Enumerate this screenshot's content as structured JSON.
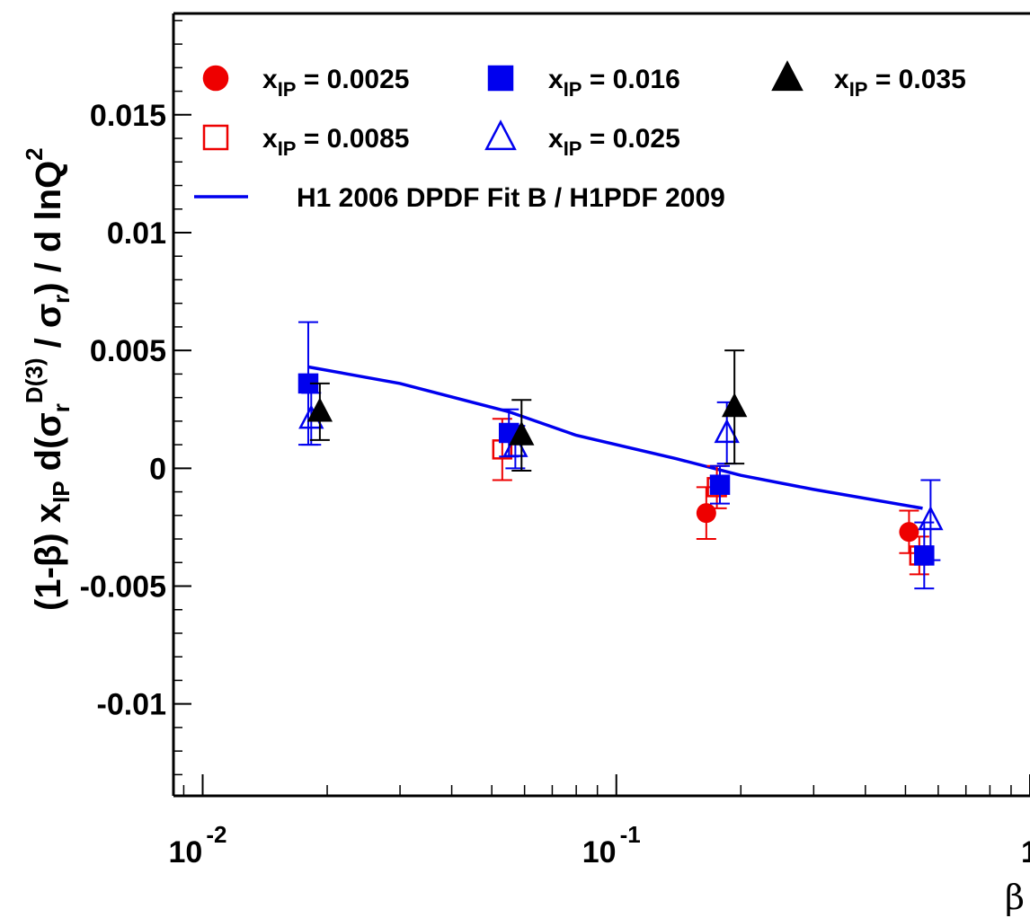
{
  "chart_data": {
    "type": "scatter",
    "title": "",
    "xlabel": "β",
    "ylabel_parts": {
      "prefix": "(1-β)  x",
      "prefix_sub": "IP",
      "mid": " d(σ",
      "mid_sub": "r",
      "mid_sup": "D(3)",
      "tail1": " / σ",
      "tail1_sub": "r",
      "tail2": ") / d lnQ",
      "tail2_sup": "2"
    },
    "x_scale": "log",
    "xlim": [
      0.0085,
      1.0
    ],
    "ylim": [
      -0.0139,
      0.0193
    ],
    "x_ticks": [
      {
        "value": 0.01,
        "base": "10",
        "exp": "-2"
      },
      {
        "value": 0.1,
        "base": "10",
        "exp": "-1"
      },
      {
        "value": 1.0,
        "base": "1",
        "exp": ""
      }
    ],
    "y_ticks": [
      {
        "value": 0.015,
        "label": "0.015"
      },
      {
        "value": 0.01,
        "label": "0.01"
      },
      {
        "value": 0.005,
        "label": "0.005"
      },
      {
        "value": 0.0,
        "label": "0"
      },
      {
        "value": -0.005,
        "label": "-0.005"
      },
      {
        "value": -0.01,
        "label": "-0.01"
      }
    ],
    "series": [
      {
        "name_base": "x",
        "name_sub": "IP",
        "name_value": " = 0.0025",
        "marker": "circle-filled",
        "color": "#ee0000",
        "points": [
          {
            "x": 0.165,
            "y": -0.0019,
            "err": 0.0011
          },
          {
            "x": 0.51,
            "y": -0.0027,
            "err": 0.0009
          }
        ]
      },
      {
        "name_base": "x",
        "name_sub": "IP",
        "name_value": " = 0.0085",
        "marker": "square-open",
        "color": "#ee0000",
        "points": [
          {
            "x": 0.053,
            "y": 0.0008,
            "err": 0.0013
          },
          {
            "x": 0.175,
            "y": -0.0008,
            "err": 0.0009
          },
          {
            "x": 0.54,
            "y": -0.0037,
            "err": 0.0008
          }
        ]
      },
      {
        "name_base": "x",
        "name_sub": "IP",
        "name_value": " = 0.016",
        "marker": "square-filled",
        "color": "#0000ee",
        "points": [
          {
            "x": 0.018,
            "y": 0.0036,
            "err": 0.0026
          },
          {
            "x": 0.055,
            "y": 0.0015,
            "err": 0.001
          },
          {
            "x": 0.178,
            "y": -0.0007,
            "err": 0.0008
          },
          {
            "x": 0.555,
            "y": -0.0037,
            "err": 0.0014
          }
        ]
      },
      {
        "name_base": "x",
        "name_sub": "IP",
        "name_value": " = 0.025",
        "marker": "triangle-open",
        "color": "#0000ee",
        "points": [
          {
            "x": 0.0183,
            "y": 0.0021,
            "err": 0.0011
          },
          {
            "x": 0.057,
            "y": 0.0009,
            "err": 0.0009
          },
          {
            "x": 0.185,
            "y": 0.0015,
            "err": 0.0013
          },
          {
            "x": 0.575,
            "y": -0.0022,
            "err": 0.0017
          }
        ]
      },
      {
        "name_base": "x",
        "name_sub": "IP",
        "name_value": " = 0.035",
        "marker": "triangle-filled",
        "color": "#000000",
        "points": [
          {
            "x": 0.0192,
            "y": 0.0024,
            "err": 0.0012
          },
          {
            "x": 0.059,
            "y": 0.0014,
            "err": 0.0015
          },
          {
            "x": 0.193,
            "y": 0.0026,
            "err": 0.0024
          }
        ]
      }
    ],
    "curve": {
      "name": "H1 2006 DPDF Fit B / H1PDF 2009",
      "color": "#0000ee",
      "x": [
        0.018,
        0.03,
        0.055,
        0.08,
        0.14,
        0.2,
        0.3,
        0.55
      ],
      "y": [
        0.0043,
        0.0036,
        0.0024,
        0.0014,
        0.0004,
        -0.0003,
        -0.0009,
        -0.0017
      ]
    }
  }
}
